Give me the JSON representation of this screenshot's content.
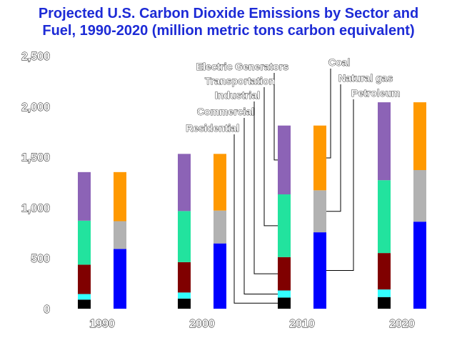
{
  "chart_data": {
    "type": "bar",
    "title_lines": [
      "Projected U.S. Carbon Dioxide Emissions by Sector and",
      "Fuel, 1990-2020 (million metric tons carbon equivalent)"
    ],
    "categories": [
      "1990",
      "2000",
      "2010",
      "2020"
    ],
    "ylim": [
      0,
      2500
    ],
    "yticks": [
      {
        "value": 0,
        "label": "0"
      },
      {
        "value": 500,
        "label": "500"
      },
      {
        "value": 1000,
        "label": "1,000"
      },
      {
        "value": 1500,
        "label": "1,500"
      },
      {
        "value": 2000,
        "label": "2,000"
      },
      {
        "value": 2500,
        "label": "2,500"
      }
    ],
    "stacks": [
      {
        "name": "sector",
        "series": [
          {
            "name": "Residential",
            "color": "#000000",
            "values": [
              90,
              100,
              110,
              115
            ]
          },
          {
            "name": "Commercial",
            "color": "#33ffff",
            "values": [
              55,
              60,
              70,
              75
            ]
          },
          {
            "name": "Industrial",
            "color": "#800000",
            "values": [
              290,
              300,
              330,
              360
            ]
          },
          {
            "name": "Transportation",
            "color": "#22e39e",
            "values": [
              435,
              505,
              620,
              720
            ]
          },
          {
            "name": "Electric Generators",
            "color": "#8c63b6",
            "values": [
              480,
              565,
              680,
              770
            ]
          }
        ]
      },
      {
        "name": "fuel",
        "series": [
          {
            "name": "Petroleum",
            "color": "#0000ff",
            "values": [
              590,
              645,
              755,
              860
            ]
          },
          {
            "name": "Natural gas",
            "color": "#b2b2b2",
            "values": [
              275,
              325,
              415,
              510
            ]
          },
          {
            "name": "Coal",
            "color": "#ff9900",
            "values": [
              485,
              560,
              640,
              670
            ]
          }
        ]
      }
    ]
  }
}
